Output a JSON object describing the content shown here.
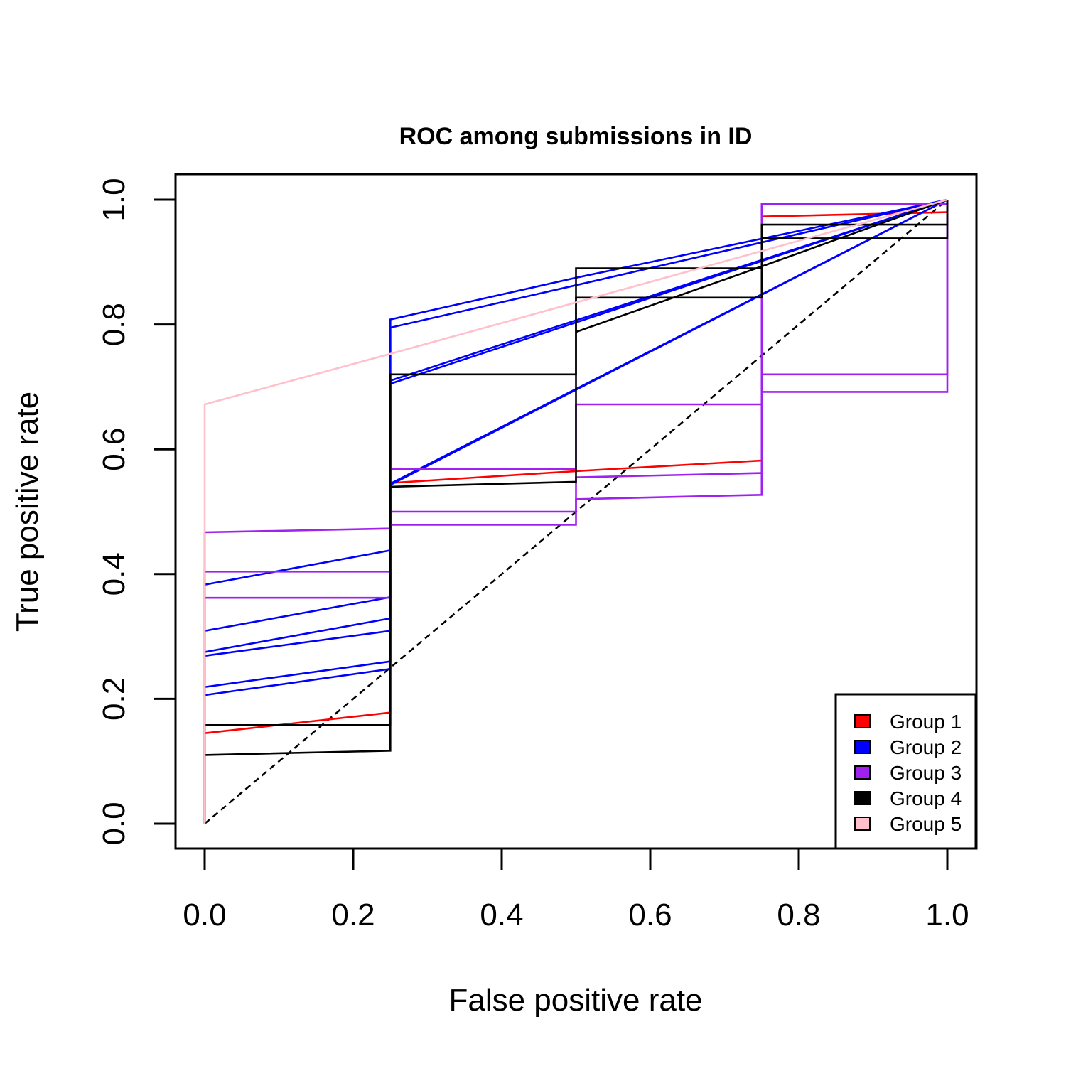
{
  "chart_data": {
    "type": "line",
    "title": "ROC among submissions in ID",
    "xlabel": "False positive rate",
    "ylabel": "True positive rate",
    "xlim": [
      0,
      1
    ],
    "ylim": [
      0,
      1
    ],
    "xticks": [
      "0.0",
      "0.2",
      "0.4",
      "0.6",
      "0.8",
      "1.0"
    ],
    "yticks": [
      "0.0",
      "0.2",
      "0.4",
      "0.6",
      "0.8",
      "1.0"
    ],
    "grid": false,
    "legend_position": "bottom-right",
    "legend": [
      {
        "name": "Group 1",
        "color": "#ff0000"
      },
      {
        "name": "Group 2",
        "color": "#0000ff"
      },
      {
        "name": "Group 3",
        "color": "#a020f0"
      },
      {
        "name": "Group 4",
        "color": "#000000"
      },
      {
        "name": "Group 5",
        "color": "#ffc0cb"
      }
    ],
    "reference_line": {
      "x": [
        0,
        1
      ],
      "y": [
        0,
        1
      ],
      "style": "dashed",
      "color": "#000000"
    },
    "series": [
      {
        "group": "Group 1",
        "color": "#ff0000",
        "x": [
          0,
          0,
          0.25,
          0.25,
          0.5,
          0.75,
          0.75,
          1
        ],
        "y": [
          0,
          0.145,
          0.178,
          0.546,
          0.565,
          0.582,
          0.973,
          0.98
        ]
      },
      {
        "group": "Group 2",
        "color": "#0000ff",
        "x": [
          0,
          0,
          0.25,
          0.25,
          0.5,
          1
        ],
        "y": [
          0,
          0.383,
          0.438,
          0.808,
          0.875,
          1.0
        ]
      },
      {
        "group": "Group 2",
        "color": "#0000ff",
        "x": [
          0,
          0,
          0.25,
          0.25,
          0.5,
          1
        ],
        "y": [
          0,
          0.309,
          0.363,
          0.795,
          0.863,
          1.0
        ]
      },
      {
        "group": "Group 2",
        "color": "#0000ff",
        "x": [
          0,
          0,
          0.25,
          0.25,
          1
        ],
        "y": [
          0,
          0.275,
          0.329,
          0.705,
          1.0
        ]
      },
      {
        "group": "Group 2",
        "color": "#0000ff",
        "x": [
          0,
          0,
          0.25,
          0.25,
          1
        ],
        "y": [
          0,
          0.269,
          0.309,
          0.71,
          1.0
        ]
      },
      {
        "group": "Group 2",
        "color": "#0000ff",
        "x": [
          0,
          0,
          0.25,
          0.25,
          1
        ],
        "y": [
          0,
          0.219,
          0.26,
          0.545,
          1.0
        ]
      },
      {
        "group": "Group 2",
        "color": "#0000ff",
        "x": [
          0,
          0,
          0.25,
          0.25,
          1
        ],
        "y": [
          0,
          0.206,
          0.248,
          0.543,
          1.0
        ]
      },
      {
        "group": "Group 3",
        "color": "#a020f0",
        "x": [
          0,
          0,
          0.25,
          0.25,
          0.5,
          0.5,
          0.75,
          0.75,
          1,
          1
        ],
        "y": [
          0,
          0.467,
          0.473,
          0.568,
          0.568,
          0.672,
          0.672,
          0.993,
          0.993,
          1.0
        ]
      },
      {
        "group": "Group 3",
        "color": "#a020f0",
        "x": [
          0,
          0,
          0.25,
          0.25,
          0.5,
          0.5,
          0.75,
          0.75,
          1,
          1
        ],
        "y": [
          0,
          0.404,
          0.404,
          0.5,
          0.5,
          0.555,
          0.562,
          0.72,
          0.72,
          1.0
        ]
      },
      {
        "group": "Group 3",
        "color": "#a020f0",
        "x": [
          0,
          0,
          0.25,
          0.25,
          0.5,
          0.5,
          0.75,
          0.75,
          1,
          1
        ],
        "y": [
          0,
          0.362,
          0.362,
          0.479,
          0.479,
          0.52,
          0.527,
          0.692,
          0.692,
          1.0
        ]
      },
      {
        "group": "Group 4",
        "color": "#000000",
        "x": [
          0,
          0,
          0.25,
          0.25,
          0.5,
          0.5,
          0.75,
          0.75,
          1,
          1
        ],
        "y": [
          0,
          0.158,
          0.158,
          0.72,
          0.72,
          0.89,
          0.89,
          0.96,
          0.96,
          1.0
        ]
      },
      {
        "group": "Group 4",
        "color": "#000000",
        "x": [
          0,
          0,
          0.25,
          0.25,
          0.5,
          0.5,
          0.75,
          0.75,
          1,
          1
        ],
        "y": [
          0,
          0.11,
          0.117,
          0.54,
          0.548,
          0.843,
          0.843,
          0.938,
          0.938,
          1.0
        ]
      },
      {
        "group": "Group 4",
        "color": "#000000",
        "x": [
          0.5,
          0.75,
          1
        ],
        "y": [
          0.788,
          0.893,
          1.0
        ]
      },
      {
        "group": "Group 5",
        "color": "#ffc0cb",
        "x": [
          0,
          0,
          0.25,
          1
        ],
        "y": [
          0,
          0.672,
          0.753,
          1.0
        ]
      }
    ]
  }
}
